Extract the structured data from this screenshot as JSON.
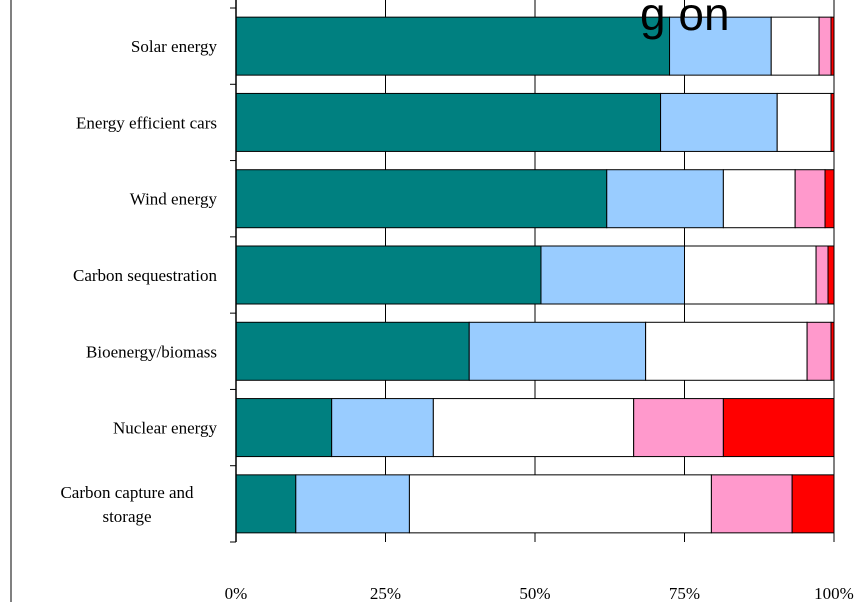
{
  "chart_data": {
    "type": "bar",
    "orientation": "horizontal",
    "stacked": true,
    "percent": true,
    "title_fragment": "g on",
    "categories": [
      "Solar energy",
      "Energy efficient cars",
      "Wind energy",
      "Carbon sequestration",
      "Bioenergy/biomass",
      "Nuclear energy",
      "Carbon capture and storage"
    ],
    "category_lines": [
      [
        "Solar energy"
      ],
      [
        "Energy efficient cars"
      ],
      [
        "Wind energy"
      ],
      [
        "Carbon sequestration"
      ],
      [
        "Bioenergy/biomass"
      ],
      [
        "Nuclear energy"
      ],
      [
        "Carbon capture and",
        "storage"
      ]
    ],
    "series": [
      {
        "color": "#008080",
        "values": [
          72.5,
          71,
          62,
          51,
          39,
          16,
          10
        ]
      },
      {
        "color": "#99ccff",
        "values": [
          17,
          19.5,
          19.5,
          24,
          29.5,
          17,
          19
        ]
      },
      {
        "color": "#ffffff",
        "values": [
          8,
          9,
          12,
          22,
          27,
          33.5,
          50.5
        ]
      },
      {
        "color": "#ff99cc",
        "values": [
          2,
          0,
          5,
          2,
          4,
          15,
          13.5
        ]
      },
      {
        "color": "#ff0000",
        "values": [
          0.5,
          0.5,
          1.5,
          1,
          0.5,
          18.5,
          7
        ]
      }
    ],
    "xlim": [
      0,
      100
    ],
    "xticks": [
      "0%",
      "25%",
      "50%",
      "75%",
      "100%"
    ],
    "xtick_values": [
      0,
      25,
      50,
      75,
      100
    ],
    "grid": true,
    "legend": "none"
  }
}
